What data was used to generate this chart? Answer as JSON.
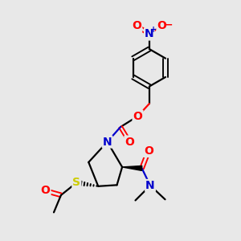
{
  "bg_color": "#e8e8e8",
  "C": "#000000",
  "N": "#0000cc",
  "O": "#ff0000",
  "S": "#cccc00",
  "lw": 1.6,
  "fs": 10
}
